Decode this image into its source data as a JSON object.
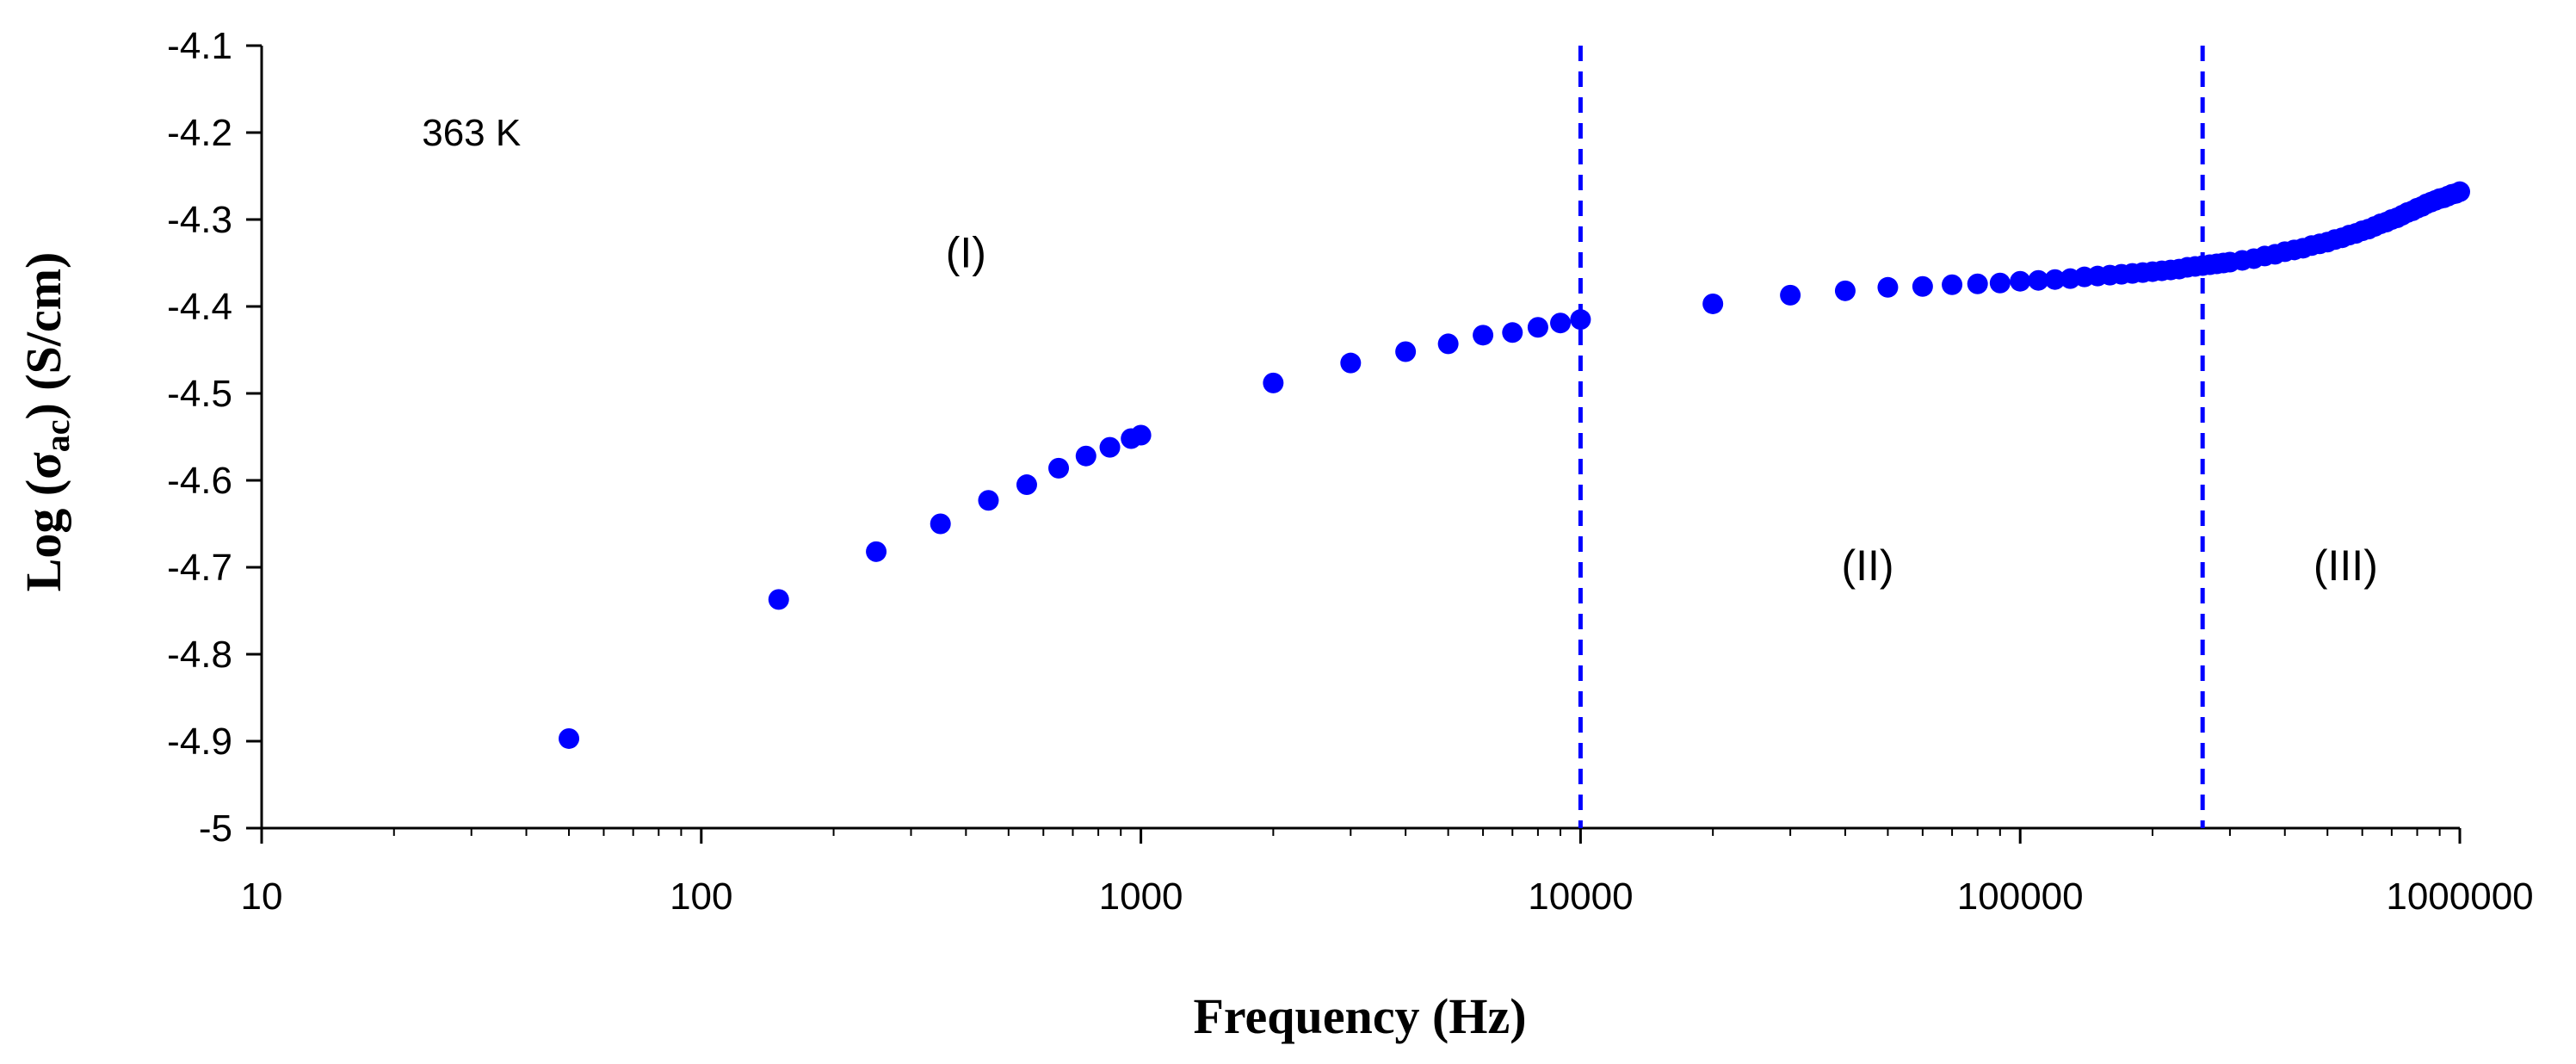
{
  "chart_data": {
    "type": "scatter",
    "title": "",
    "xlabel": "Frequency (Hz)",
    "ylabel_main": "Log (",
    "ylabel_sigma": "σ",
    "ylabel_sub": "ac",
    "ylabel_tail": ") (S/cm)",
    "xscale": "log",
    "xlim": [
      10,
      1000000
    ],
    "ylim": [
      -5,
      -4.1
    ],
    "xticks": [
      10,
      100,
      1000,
      10000,
      100000,
      1000000
    ],
    "xtick_labels": [
      "10",
      "100",
      "1000",
      "10000",
      "100000",
      "1000000"
    ],
    "yticks": [
      -5,
      -4.9,
      -4.8,
      -4.7,
      -4.6,
      -4.5,
      -4.4,
      -4.3,
      -4.2,
      -4.1
    ],
    "ytick_labels": [
      "-5",
      "-4.9",
      "-4.8",
      "-4.7",
      "-4.6",
      "-4.5",
      "-4.4",
      "-4.3",
      "-4.2",
      "-4.1"
    ],
    "grid": false,
    "marker_color": "#0000ff",
    "vline_color": "#0000ff",
    "vlines": [
      10000,
      260000
    ],
    "annotations": [
      {
        "text": "363 K",
        "x": 30,
        "y": -4.215,
        "kind": "temp"
      },
      {
        "text": "(I)",
        "x": 400,
        "y": -4.355,
        "kind": "region"
      },
      {
        "text": "(II)",
        "x": 45000,
        "y": -4.715,
        "kind": "region"
      },
      {
        "text": "(III)",
        "x": 550000,
        "y": -4.715,
        "kind": "region"
      }
    ],
    "series": [
      {
        "name": "363 K",
        "x": [
          50,
          150,
          250,
          350,
          450,
          550,
          650,
          750,
          850,
          950,
          1000,
          2000,
          3000,
          4000,
          5000,
          6000,
          7000,
          8000,
          9000,
          10000,
          20000,
          30000,
          40000,
          50000,
          60000,
          70000,
          80000,
          90000,
          100000,
          110000,
          120000,
          130000,
          140000,
          150000,
          160000,
          170000,
          180000,
          190000,
          200000,
          210000,
          220000,
          230000,
          240000,
          250000,
          260000,
          270000,
          280000,
          290000,
          300000,
          320000,
          340000,
          360000,
          380000,
          400000,
          420000,
          440000,
          460000,
          480000,
          500000,
          520000,
          540000,
          560000,
          580000,
          600000,
          620000,
          640000,
          660000,
          680000,
          700000,
          720000,
          740000,
          760000,
          780000,
          800000,
          820000,
          840000,
          860000,
          880000,
          900000,
          920000,
          940000,
          960000,
          980000,
          1000000
        ],
        "y": [
          -4.897,
          -4.737,
          -4.682,
          -4.65,
          -4.623,
          -4.605,
          -4.586,
          -4.572,
          -4.562,
          -4.552,
          -4.548,
          -4.488,
          -4.465,
          -4.452,
          -4.443,
          -4.433,
          -4.43,
          -4.424,
          -4.419,
          -4.415,
          -4.397,
          -4.387,
          -4.382,
          -4.378,
          -4.377,
          -4.375,
          -4.374,
          -4.373,
          -4.371,
          -4.37,
          -4.369,
          -4.368,
          -4.366,
          -4.365,
          -4.364,
          -4.363,
          -4.362,
          -4.361,
          -4.36,
          -4.359,
          -4.358,
          -4.357,
          -4.355,
          -4.354,
          -4.353,
          -4.352,
          -4.351,
          -4.35,
          -4.349,
          -4.347,
          -4.345,
          -4.342,
          -4.34,
          -4.337,
          -4.335,
          -4.333,
          -4.33,
          -4.328,
          -4.326,
          -4.323,
          -4.321,
          -4.318,
          -4.316,
          -4.313,
          -4.311,
          -4.308,
          -4.305,
          -4.303,
          -4.3,
          -4.298,
          -4.295,
          -4.292,
          -4.29,
          -4.287,
          -4.285,
          -4.282,
          -4.28,
          -4.278,
          -4.276,
          -4.275,
          -4.273,
          -4.271,
          -4.27,
          -4.268
        ]
      }
    ]
  }
}
